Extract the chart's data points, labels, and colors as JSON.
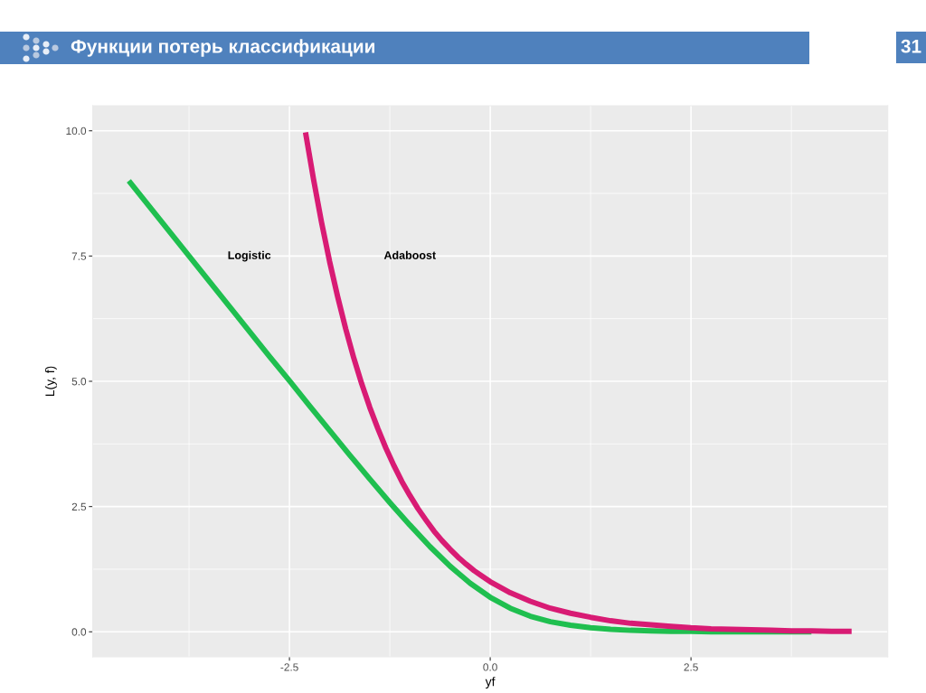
{
  "chart_data": {
    "type": "line",
    "title": "Функции потерь классификации",
    "xlabel": "yf",
    "ylabel": "L(y, f)",
    "xlim": [
      -4.95,
      4.95
    ],
    "ylim": [
      -0.5,
      10.5
    ],
    "xticks": [
      {
        "value": -3.75,
        "label": null
      },
      -2.5,
      {
        "value": -1.25,
        "label": null
      },
      {
        "value": 0,
        "label": "0.0"
      },
      {
        "value": 1.25,
        "label": null
      },
      2.5,
      {
        "value": 3.75,
        "label": null
      }
    ],
    "yticks": [
      {
        "value": 0,
        "label": "0.0"
      },
      {
        "value": 1.25,
        "label": null
      },
      2.5,
      {
        "value": 3.75,
        "label": null
      },
      {
        "value": 5,
        "label": "5.0"
      },
      {
        "value": 6.25,
        "label": null
      },
      7.5,
      {
        "value": 8.75,
        "label": null
      },
      {
        "value": 10,
        "label": "10.0"
      }
    ],
    "grid": true,
    "series": [
      {
        "color": "#1fbf4f",
        "x": [
          -4.5,
          -4.25,
          -4.0,
          -3.75,
          -3.5,
          -3.25,
          -3.0,
          -2.75,
          -2.5,
          -2.25,
          -2.0,
          -1.75,
          -1.5,
          -1.25,
          -1.0,
          -0.75,
          -0.5,
          -0.25,
          0,
          0.25,
          0.5,
          0.75,
          1.0,
          1.25,
          1.5,
          1.75,
          2.0,
          2.25,
          2.5,
          2.75,
          3.0,
          3.25,
          3.5,
          3.75,
          4.0
        ],
        "values": [
          9.0,
          8.5,
          8.0,
          7.5,
          7.0,
          6.5,
          6.0,
          5.5,
          5.01,
          4.51,
          4.02,
          3.53,
          3.05,
          2.58,
          2.13,
          1.7,
          1.31,
          0.97,
          0.69,
          0.47,
          0.31,
          0.2,
          0.13,
          0.08,
          0.05,
          0.03,
          0.02,
          0.01,
          0.01,
          0,
          0,
          0,
          0,
          0,
          0
        ]
      },
      {
        "color": "#d81b74",
        "x": [
          -2.3,
          -2.2,
          -2.1,
          -2.0,
          -1.9,
          -1.8,
          -1.7,
          -1.6,
          -1.5,
          -1.4,
          -1.3,
          -1.2,
          -1.1,
          -1.0,
          -0.9,
          -0.8,
          -0.7,
          -0.6,
          -0.5,
          -0.4,
          -0.3,
          -0.2,
          -0.1,
          0,
          0.25,
          0.5,
          0.75,
          1.0,
          1.25,
          1.5,
          1.75,
          2.0,
          2.25,
          2.5,
          2.75,
          3.0,
          3.25,
          3.5,
          3.75,
          4.0,
          4.25,
          4.5
        ],
        "values": [
          9.97,
          9.03,
          8.17,
          7.39,
          6.69,
          6.05,
          5.47,
          4.95,
          4.48,
          4.06,
          3.67,
          3.32,
          3.0,
          2.72,
          2.46,
          2.23,
          2.01,
          1.82,
          1.65,
          1.49,
          1.35,
          1.22,
          1.11,
          1.0,
          0.78,
          0.61,
          0.47,
          0.37,
          0.29,
          0.22,
          0.17,
          0.14,
          0.11,
          0.08,
          0.06,
          0.05,
          0.04,
          0.03,
          0.02,
          0.02,
          0.01,
          0.01
        ]
      }
    ],
    "annotations": [
      "Logistic",
      "Adaboost",
      "31"
    ]
  }
}
